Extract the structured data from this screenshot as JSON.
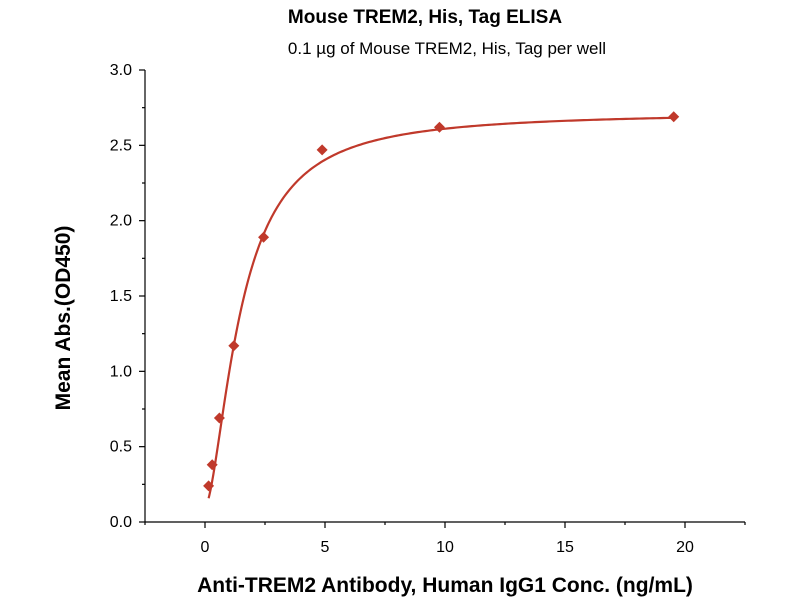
{
  "chart_data": {
    "type": "scatter",
    "title": "Mouse TREM2, His, Tag ELISA",
    "subtitle": "0.1 µg of Mouse TREM2, His, Tag per well",
    "xlabel": "Anti-TREM2 Antibody, Human IgG1 Conc. (ng/mL)",
    "ylabel": "Mean Abs.(OD450)",
    "xlim": [
      -2.5,
      22.5
    ],
    "ylim": [
      0,
      3.0
    ],
    "x_ticks": [
      0,
      5,
      10,
      15,
      20
    ],
    "y_ticks": [
      0.0,
      0.5,
      1.0,
      1.5,
      2.0,
      2.5,
      3.0
    ],
    "x_tick_labels": [
      "0",
      "5",
      "10",
      "15",
      "20"
    ],
    "y_tick_labels": [
      "0.0",
      "0.5",
      "1.0",
      "1.5",
      "2.0",
      "2.5",
      "3.0"
    ],
    "grid": false,
    "marker_color": "#c0392b",
    "curve_color": "#c0392b",
    "series": [
      {
        "x": [
          0.15,
          0.3,
          0.6,
          1.2,
          2.44,
          4.88,
          9.77,
          19.53
        ],
        "y": [
          0.24,
          0.38,
          0.69,
          1.17,
          1.89,
          2.47,
          2.62,
          2.69
        ]
      }
    ],
    "fit": {
      "model": "4PL",
      "bottom": 0.1,
      "top": 2.72,
      "ec50": 1.5,
      "hill": 1.65
    }
  }
}
